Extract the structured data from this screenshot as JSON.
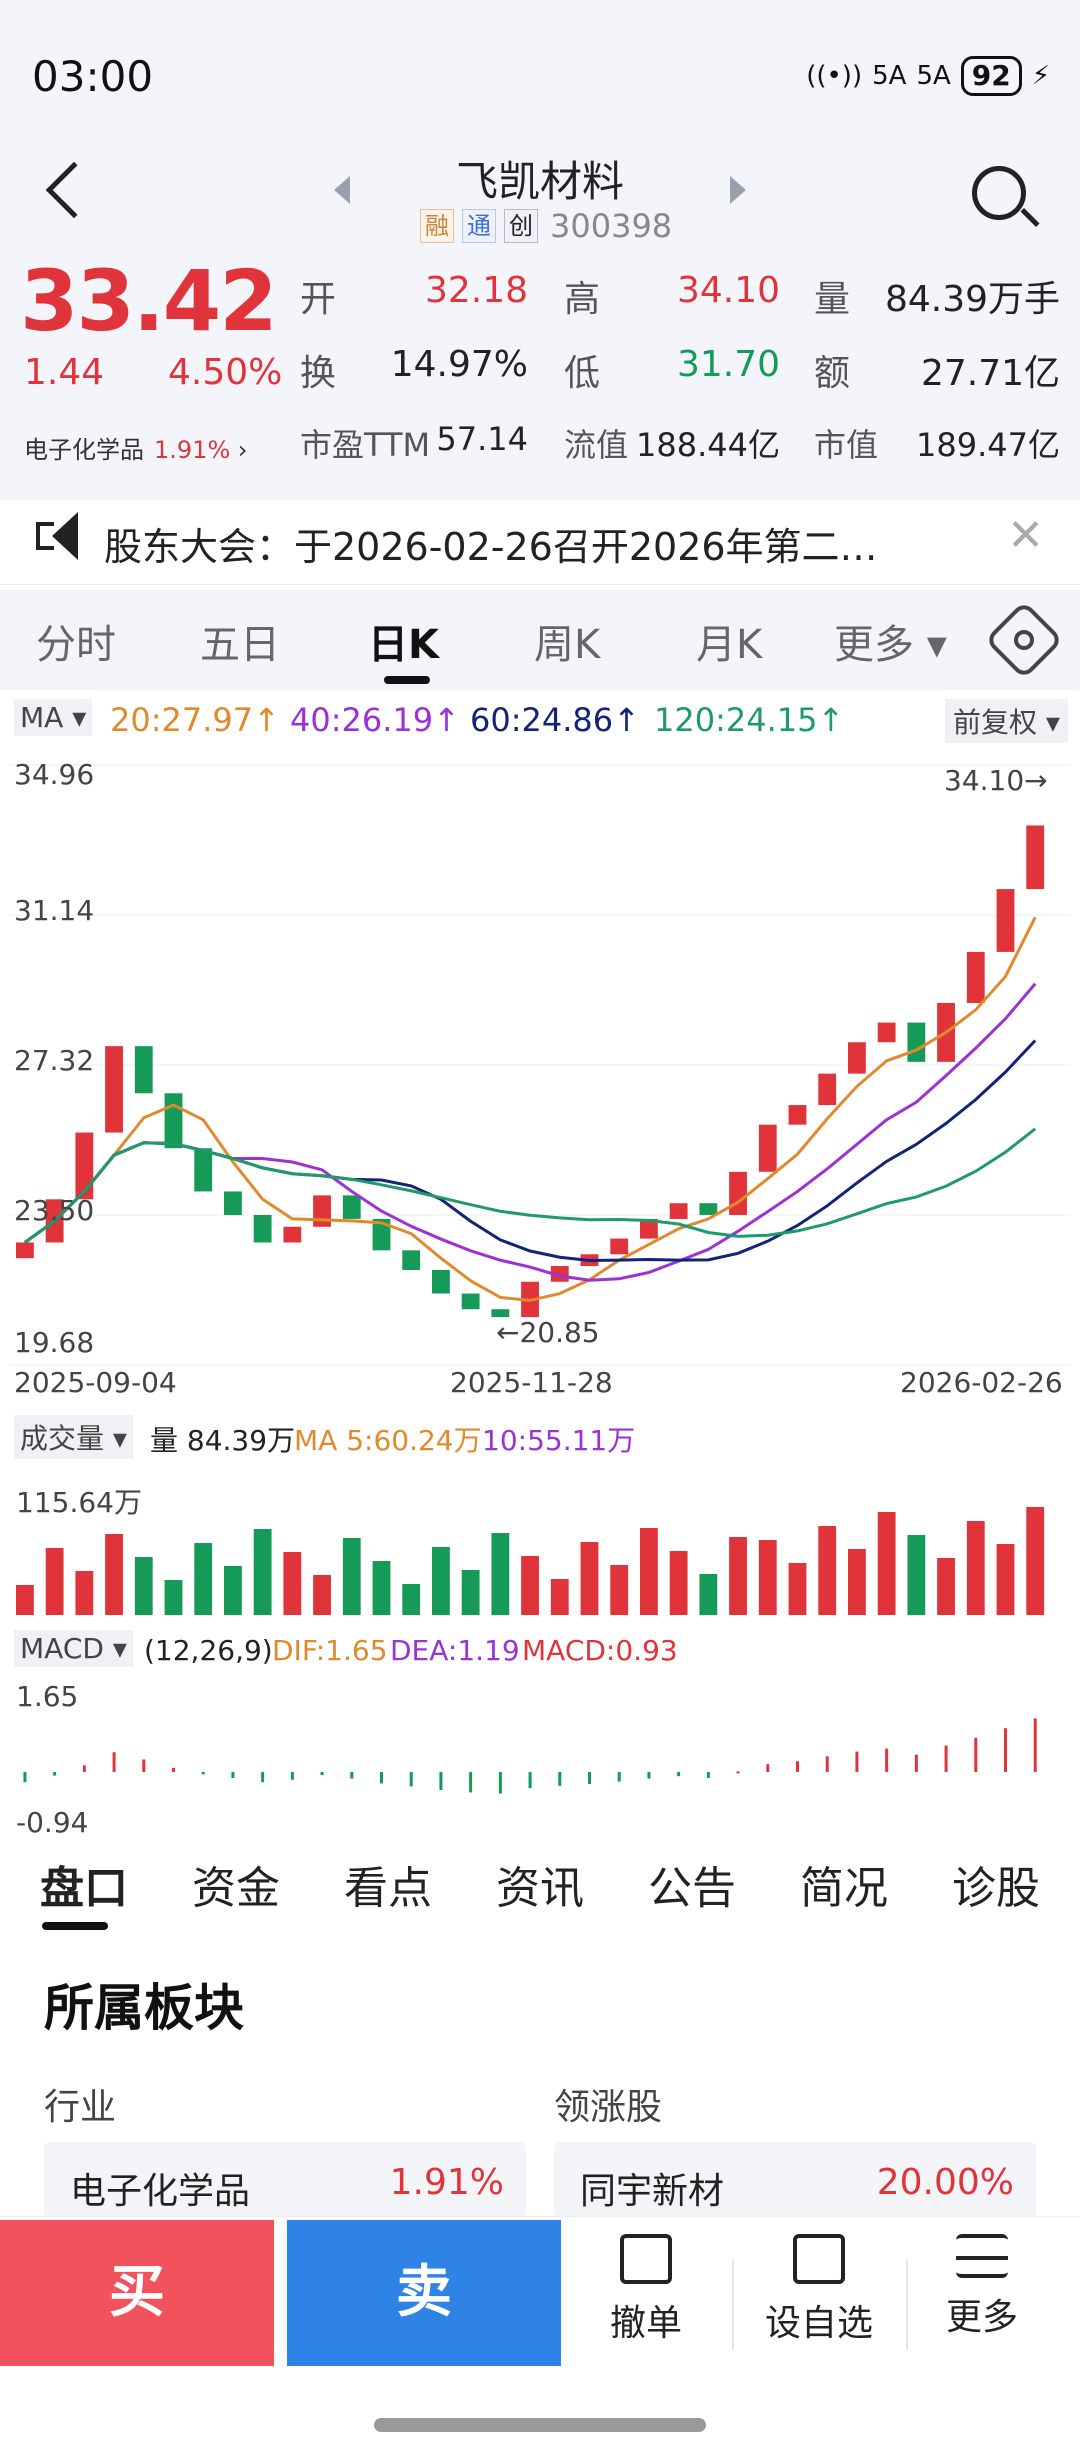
{
  "status": {
    "time": "03:00",
    "signal1": "5A",
    "signal2": "5A",
    "battery": "92"
  },
  "header": {
    "title": "飞凯材料",
    "tag1": "融",
    "tag2": "通",
    "tag3": "创",
    "code": "300398"
  },
  "quote": {
    "price": "33.42",
    "change": "1.44",
    "change_pct": "4.50%",
    "industry": "电子化学品",
    "industry_pct": "1.91%",
    "open_label": "开",
    "open": "32.18",
    "high_label": "高",
    "high": "34.10",
    "vol_label": "量",
    "vol": "84.39万手",
    "turnover_label": "换",
    "turnover": "14.97%",
    "low_label": "低",
    "low": "31.70",
    "amt_label": "额",
    "amt": "27.71亿",
    "pe_label": "市盈TTM",
    "pe": "57.14",
    "float_label": "流值",
    "float_val": "188.44亿",
    "mcap_label": "市值",
    "mcap": "189.47亿"
  },
  "notice": {
    "text": "股东大会：于2026-02-26召开2026年第二…"
  },
  "tabs": [
    "分时",
    "五日",
    "日K",
    "周K",
    "月K",
    "更多"
  ],
  "ma": {
    "btn": "MA",
    "ma20": "20:27.97↑",
    "ma40": "40:26.19↑",
    "ma60": "60:24.86↑",
    "ma120": "120:24.15↑",
    "adj": "前复权"
  },
  "chart": {
    "y_labels": [
      "34.96",
      "31.14",
      "27.32",
      "23.50",
      "19.68"
    ],
    "high_marker": "34.10→",
    "low_marker": "←20.85",
    "x_labels": [
      "2025-09-04",
      "2025-11-28",
      "2026-02-26"
    ]
  },
  "volume": {
    "btn": "成交量",
    "vol": "量 84.39万",
    "ma5": "MA 5:60.24万",
    "ma10": "10:55.11万",
    "ylabel": "115.64万"
  },
  "macd": {
    "btn": "MACD",
    "params": "(12,26,9)",
    "dif": "DIF:1.65",
    "dea": "DEA:1.19",
    "macd": "MACD:0.93",
    "top": "1.65",
    "bottom": "-0.94"
  },
  "btabs": [
    "盘口",
    "资金",
    "看点",
    "资讯",
    "公告",
    "简况",
    "诊股"
  ],
  "section": {
    "title": "所属板块",
    "industry_label": "行业",
    "leader_label": "领涨股",
    "industry_name": "电子化学品",
    "industry_pct": "1.91%",
    "leader_name": "同宇新材",
    "leader_pct": "20.00%"
  },
  "actions": {
    "buy": "买",
    "sell": "卖",
    "cancel": "撤单",
    "watch": "设自选",
    "more": "更多"
  },
  "colors": {
    "up": "#e0343a",
    "down": "#169a58",
    "ma20": "#e08a2c",
    "ma40": "#9b32d6",
    "ma60": "#13237a",
    "ma120": "#1f9a6a"
  },
  "chart_data": {
    "type": "candlestick",
    "series_close_approx": [
      22.8,
      23.9,
      25.6,
      27.8,
      26.6,
      25.2,
      24.1,
      23.5,
      22.8,
      23.2,
      24.0,
      23.4,
      22.6,
      22.1,
      21.5,
      21.1,
      20.9,
      21.8,
      22.2,
      22.5,
      22.9,
      23.4,
      23.8,
      23.5,
      24.6,
      25.8,
      26.3,
      27.1,
      27.9,
      28.4,
      27.4,
      28.9,
      30.2,
      31.8,
      33.42
    ]
  }
}
